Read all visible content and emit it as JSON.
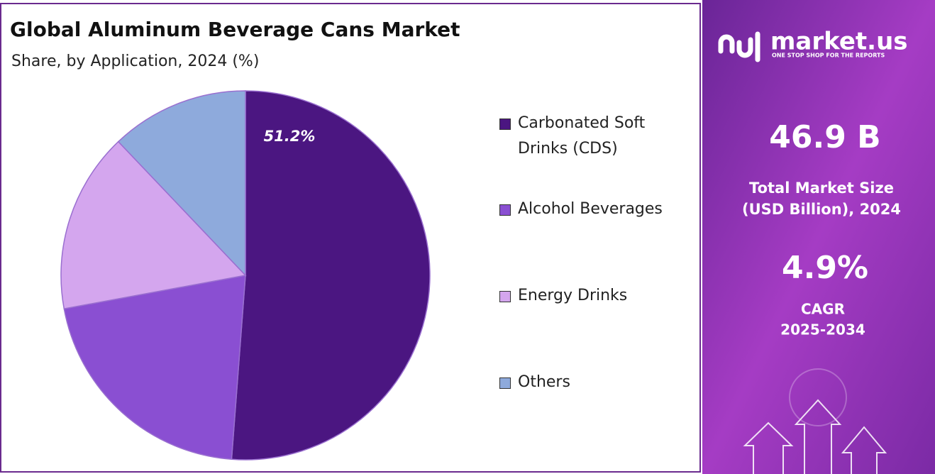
{
  "chart_data": {
    "type": "pie",
    "title": "Global Aluminum Beverage Cans Market",
    "subtitle": "Share, by Application, 2024 (%)",
    "categories": [
      "Carbonated Soft Drinks (CDS)",
      "Alcohol Beverages",
      "Energy Drinks",
      "Others"
    ],
    "values": [
      51.2,
      20.9,
      15.8,
      12.1
    ],
    "value_labels": [
      "51.2%",
      null,
      null,
      null
    ],
    "colors": [
      "#4b1681",
      "#8a4fd2",
      "#d4a6ee",
      "#8eaadc"
    ],
    "legend": "right"
  },
  "panel": {
    "brand": "market.us",
    "tagline": "ONE STOP SHOP FOR THE REPORTS",
    "market_size": "46.9 B",
    "market_size_label": [
      "Total Market Size",
      "(USD Billion), 2024"
    ],
    "cagr": "4.9%",
    "cagr_label": [
      "CAGR",
      "2025-2034"
    ]
  }
}
